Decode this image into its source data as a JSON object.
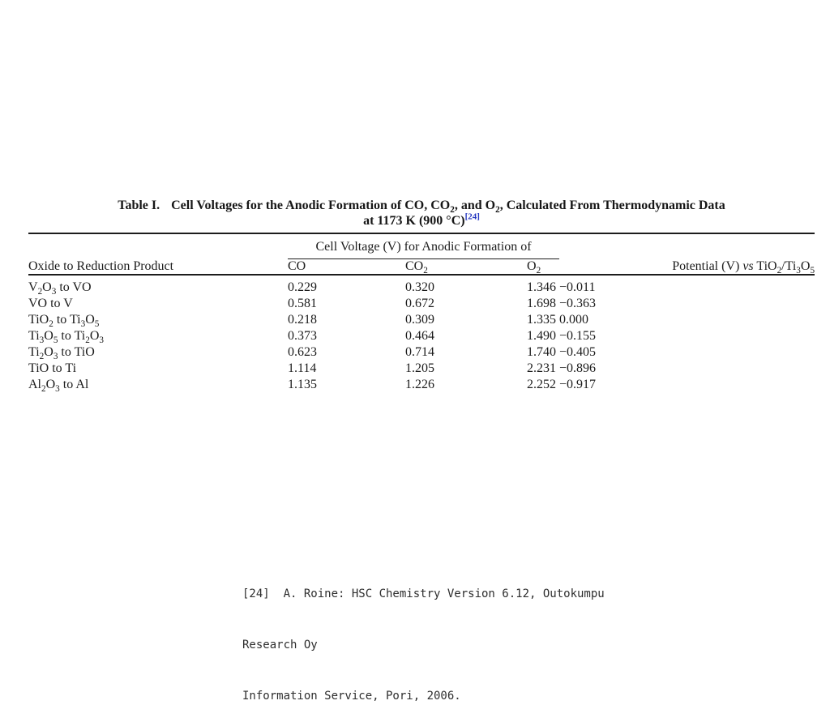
{
  "caption": {
    "label": "Table I.",
    "line1": "Cell Voltages for the Anodic Formation of CO, CO_2, and O_2, Calculated From Thermodynamic Data",
    "line2_text": "at 1173 K (900 °C)",
    "line2_ref": "[24]",
    "ref_color": "#2336c0"
  },
  "table": {
    "spanner_heading": "Cell Voltage (V) for Anodic Formation of",
    "columns": {
      "stub": "Oxide to Reduction Product",
      "co": "CO",
      "co2": "CO_2",
      "o2": "O_2",
      "potential": "Potential (V) *vs* TiO_2/Ti_3O_5"
    },
    "rows": [
      {
        "label": "V_2O_3 to VO",
        "co": "0.229",
        "co2": "0.320",
        "o2": "1.346",
        "potential": "−0.011"
      },
      {
        "label": "VO to V",
        "co": "0.581",
        "co2": "0.672",
        "o2": "1.698",
        "potential": "−0.363"
      },
      {
        "label": "TiO_2 to Ti_3O_5",
        "co": "0.218",
        "co2": "0.309",
        "o2": "1.335",
        "potential": "0.000"
      },
      {
        "label": "Ti_3O_5 to Ti_2O_3",
        "co": "0.373",
        "co2": "0.464",
        "o2": "1.490",
        "potential": "−0.155"
      },
      {
        "label": "Ti_2O_3 to TiO",
        "co": "0.623",
        "co2": "0.714",
        "o2": "1.740",
        "potential": "−0.405"
      },
      {
        "label": "TiO to Ti",
        "co": "1.114",
        "co2": "1.205",
        "o2": "2.231",
        "potential": "−0.896"
      },
      {
        "label": "Al_2O_3 to Al",
        "co": "1.135",
        "co2": "1.226",
        "o2": "2.252",
        "potential": "−0.917"
      }
    ]
  },
  "footnote": {
    "lines": [
      "[24]  A. Roine: HSC Chemistry Version 6.12, Outokumpu",
      "Research Oy",
      "Information Service, Pori, 2006."
    ]
  }
}
